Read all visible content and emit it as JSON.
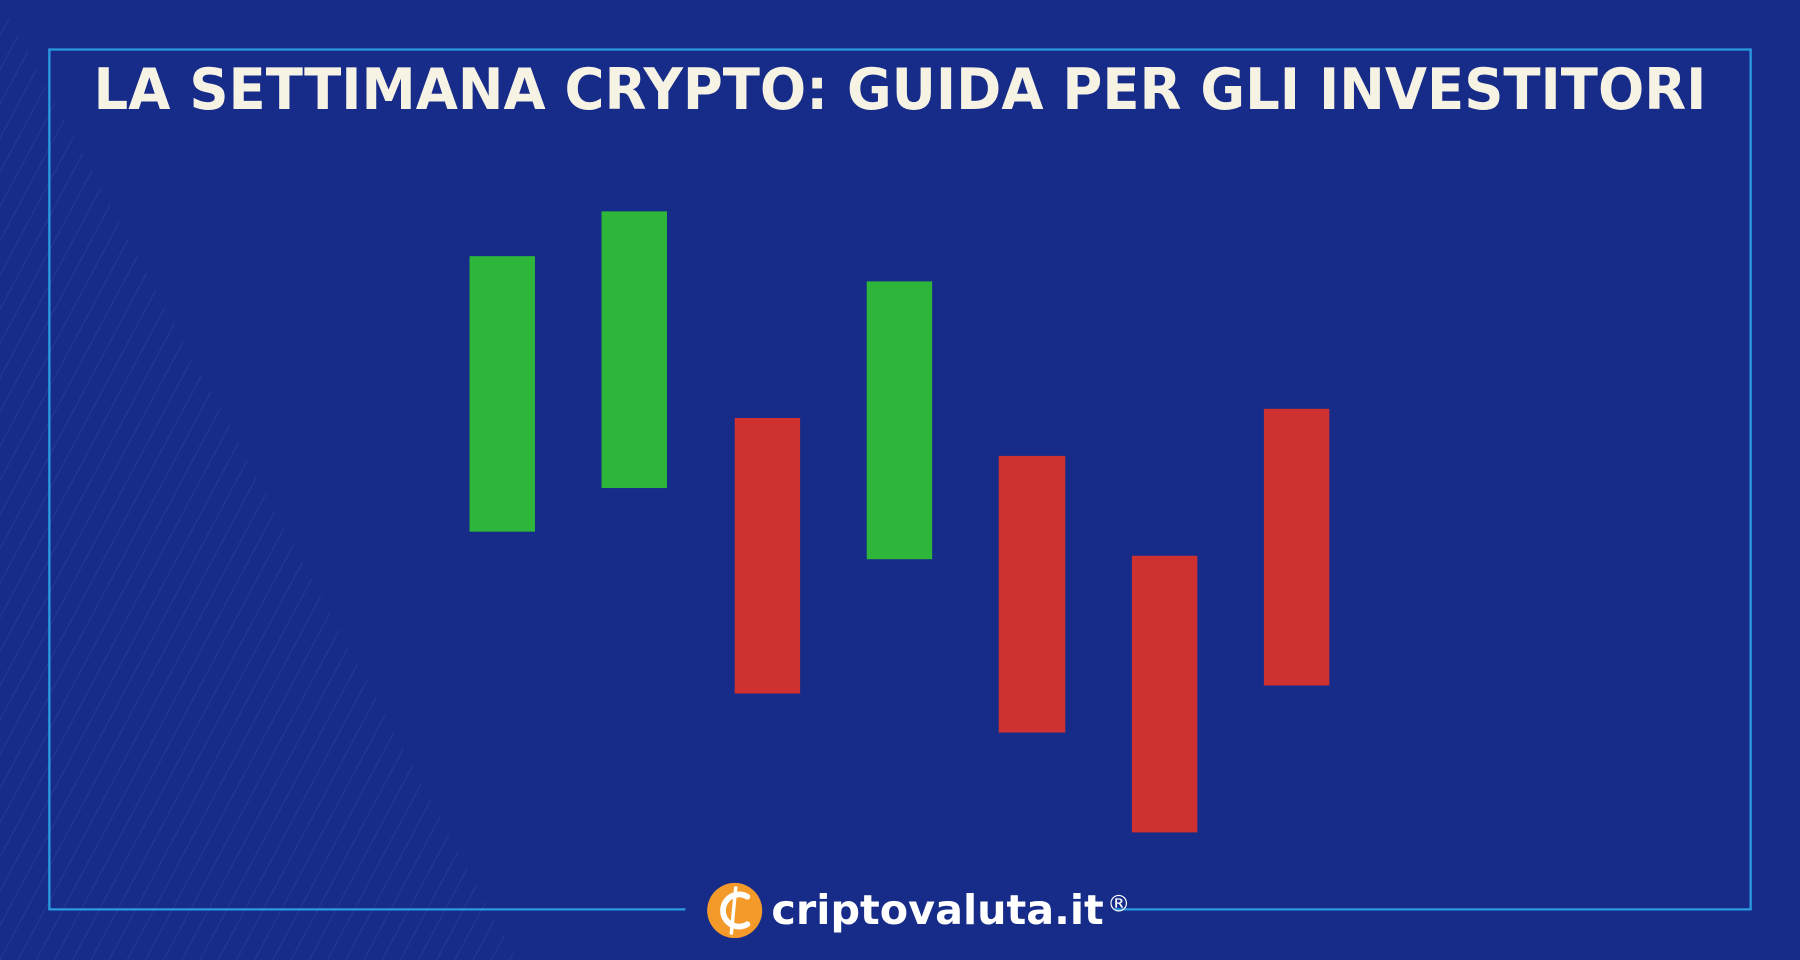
{
  "header": {
    "title": "LA SETTIMANA CRYPTO: GUIDA PER GLI INVESTITORI"
  },
  "logo": {
    "text": "criptovaluta.it",
    "mark": "®"
  }
}
